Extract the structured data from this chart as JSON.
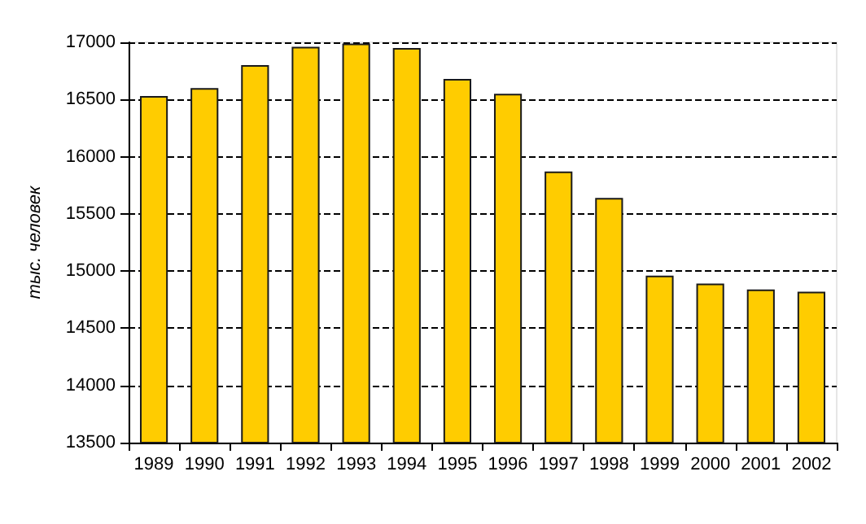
{
  "chart_data": {
    "type": "bar",
    "ylabel": "тыс. человек",
    "categories": [
      "1989",
      "1990",
      "1991",
      "1992",
      "1993",
      "1994",
      "1995",
      "1996",
      "1997",
      "1998",
      "1999",
      "2000",
      "2001",
      "2002"
    ],
    "values": [
      16530,
      16600,
      16800,
      16960,
      16990,
      16950,
      16680,
      16550,
      15870,
      15640,
      14960,
      14890,
      14840,
      14820
    ],
    "color": "#ffcc00",
    "ylim": [
      13500,
      17000
    ],
    "yticks": [
      13500,
      14000,
      14500,
      15000,
      15500,
      16000,
      16500,
      17000
    ],
    "grid": "y",
    "line_style": "dashed"
  }
}
